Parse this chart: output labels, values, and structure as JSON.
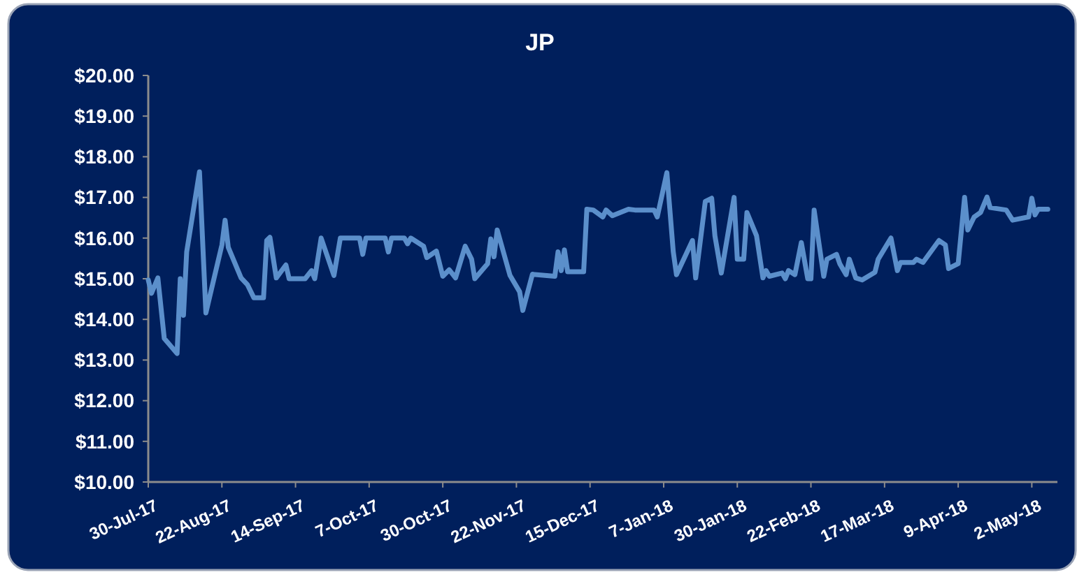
{
  "chart_data": {
    "type": "line",
    "title": "JP",
    "x": [
      "2017-07-30",
      "2017-07-31",
      "2017-08-02",
      "2017-08-04",
      "2017-08-08",
      "2017-08-09",
      "2017-08-10",
      "2017-08-11",
      "2017-08-15",
      "2017-08-17",
      "2017-08-22",
      "2017-08-23",
      "2017-08-24",
      "2017-08-28",
      "2017-08-30",
      "2017-09-01",
      "2017-09-04",
      "2017-09-05",
      "2017-09-06",
      "2017-09-08",
      "2017-09-11",
      "2017-09-12",
      "2017-09-17",
      "2017-09-19",
      "2017-09-20",
      "2017-09-22",
      "2017-09-26",
      "2017-09-28",
      "2017-10-04",
      "2017-10-05",
      "2017-10-06",
      "2017-10-12",
      "2017-10-13",
      "2017-10-14",
      "2017-10-18",
      "2017-10-19",
      "2017-10-20",
      "2017-10-24",
      "2017-10-25",
      "2017-10-28",
      "2017-10-30",
      "2017-11-01",
      "2017-11-03",
      "2017-11-06",
      "2017-11-08",
      "2017-11-09",
      "2017-11-13",
      "2017-11-14",
      "2017-11-15",
      "2017-11-16",
      "2017-11-20",
      "2017-11-23",
      "2017-11-24",
      "2017-11-27",
      "2017-12-04",
      "2017-12-05",
      "2017-12-06",
      "2017-12-07",
      "2017-12-08",
      "2017-12-13",
      "2017-12-14",
      "2017-12-16",
      "2017-12-19",
      "2017-12-20",
      "2017-12-22",
      "2017-12-27",
      "2017-12-29",
      "2018-01-04",
      "2018-01-05",
      "2018-01-08",
      "2018-01-10",
      "2018-01-11",
      "2018-01-16",
      "2018-01-17",
      "2018-01-20",
      "2018-01-22",
      "2018-01-23",
      "2018-01-25",
      "2018-01-29",
      "2018-01-30",
      "2018-02-01",
      "2018-02-02",
      "2018-02-05",
      "2018-02-07",
      "2018-02-08",
      "2018-02-09",
      "2018-02-13",
      "2018-02-14",
      "2018-02-15",
      "2018-02-17",
      "2018-02-19",
      "2018-02-21",
      "2018-02-22",
      "2018-02-23",
      "2018-02-26",
      "2018-02-27",
      "2018-03-02",
      "2018-03-03",
      "2018-03-05",
      "2018-03-06",
      "2018-03-08",
      "2018-03-10",
      "2018-03-14",
      "2018-03-15",
      "2018-03-19",
      "2018-03-21",
      "2018-03-22",
      "2018-03-26",
      "2018-03-27",
      "2018-03-29",
      "2018-04-03",
      "2018-04-05",
      "2018-04-06",
      "2018-04-09",
      "2018-04-11",
      "2018-04-12",
      "2018-04-14",
      "2018-04-16",
      "2018-04-18",
      "2018-04-19",
      "2018-04-24",
      "2018-04-26",
      "2018-05-01",
      "2018-05-02",
      "2018-05-03",
      "2018-05-04",
      "2018-05-07"
    ],
    "series": [
      {
        "color": "#5b8fcb",
        "values": [
          14.97,
          14.64,
          15.02,
          13.53,
          13.16,
          15.0,
          14.1,
          15.66,
          17.63,
          14.16,
          15.83,
          16.44,
          15.77,
          15.02,
          14.85,
          14.53,
          14.53,
          15.94,
          16.02,
          15.02,
          15.34,
          15.0,
          15.0,
          15.2,
          15.0,
          16.0,
          15.08,
          16.0,
          16.0,
          15.6,
          16.0,
          16.0,
          15.66,
          16.0,
          16.0,
          15.86,
          16.0,
          15.8,
          15.52,
          15.68,
          15.06,
          15.22,
          15.02,
          15.8,
          15.48,
          15.0,
          15.37,
          15.98,
          15.54,
          16.2,
          15.08,
          14.68,
          14.22,
          15.11,
          15.06,
          15.66,
          15.2,
          15.71,
          15.17,
          15.17,
          16.71,
          16.69,
          16.52,
          16.69,
          16.55,
          16.71,
          16.69,
          16.69,
          16.52,
          17.61,
          15.66,
          15.1,
          15.94,
          15.02,
          16.9,
          16.98,
          16.06,
          15.14,
          17.0,
          15.48,
          15.48,
          16.63,
          16.06,
          15.02,
          15.2,
          15.06,
          15.14,
          15.0,
          15.2,
          15.1,
          15.89,
          15.0,
          15.0,
          16.69,
          15.06,
          15.48,
          15.6,
          15.37,
          15.1,
          15.48,
          15.02,
          14.97,
          15.16,
          15.48,
          16.0,
          15.2,
          15.4,
          15.4,
          15.48,
          15.4,
          15.94,
          15.83,
          15.25,
          15.37,
          17.0,
          16.2,
          16.52,
          16.63,
          17.01,
          16.75,
          16.69,
          16.44,
          16.52,
          16.98,
          16.57,
          16.71,
          16.71
        ]
      }
    ],
    "xlim": [
      "2017-07-30",
      "2018-05-10"
    ],
    "xticks": [
      {
        "value": "2017-07-30",
        "label": "30-Jul-17"
      },
      {
        "value": "2017-08-22",
        "label": "22-Aug-17"
      },
      {
        "value": "2017-09-14",
        "label": "14-Sep-17"
      },
      {
        "value": "2017-10-07",
        "label": "7-Oct-17"
      },
      {
        "value": "2017-10-30",
        "label": "30-Oct-17"
      },
      {
        "value": "2017-11-22",
        "label": "22-Nov-17"
      },
      {
        "value": "2017-12-15",
        "label": "15-Dec-17"
      },
      {
        "value": "2018-01-07",
        "label": "7-Jan-18"
      },
      {
        "value": "2018-01-30",
        "label": "30-Jan-18"
      },
      {
        "value": "2018-02-22",
        "label": "22-Feb-18"
      },
      {
        "value": "2018-03-17",
        "label": "17-Mar-18"
      },
      {
        "value": "2018-04-09",
        "label": "9-Apr-18"
      },
      {
        "value": "2018-05-02",
        "label": "2-May-18"
      }
    ],
    "ylim": [
      10,
      20
    ],
    "yticks": [
      {
        "value": 10,
        "label": "$10.00"
      },
      {
        "value": 11,
        "label": "$11.00"
      },
      {
        "value": 12,
        "label": "$12.00"
      },
      {
        "value": 13,
        "label": "$13.00"
      },
      {
        "value": 14,
        "label": "$14.00"
      },
      {
        "value": 15,
        "label": "$15.00"
      },
      {
        "value": 16,
        "label": "$16.00"
      },
      {
        "value": 17,
        "label": "$17.00"
      },
      {
        "value": 18,
        "label": "$18.00"
      },
      {
        "value": 19,
        "label": "$19.00"
      },
      {
        "value": 20,
        "label": "$20.00"
      }
    ],
    "grid": false,
    "marker": "none",
    "line_style": "solid"
  }
}
